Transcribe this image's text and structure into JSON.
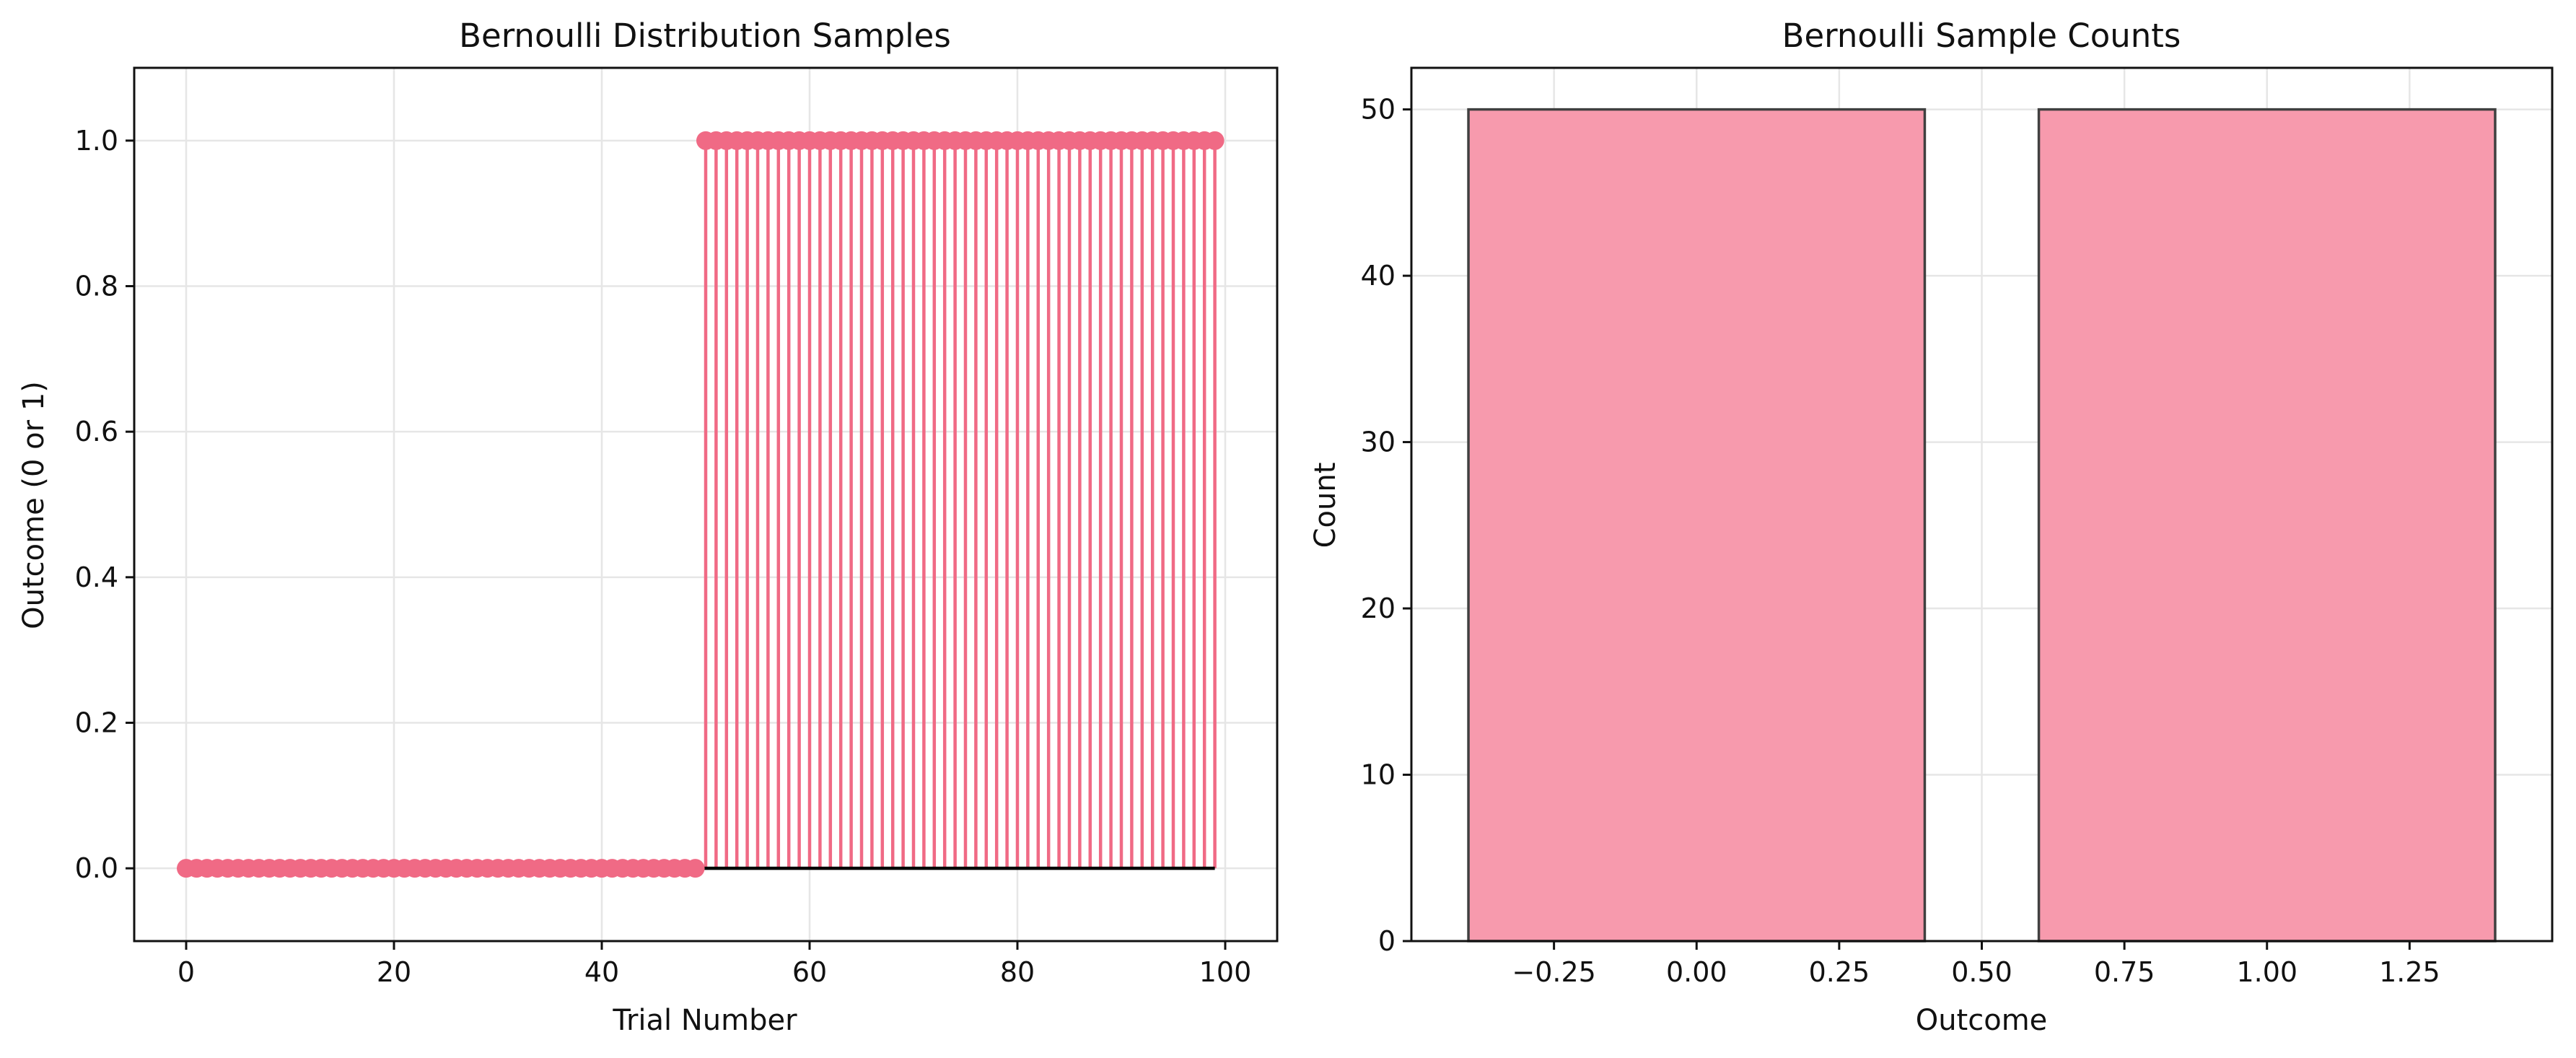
{
  "chart_data": [
    {
      "type": "stem",
      "title": "Bernoulli Distribution Samples",
      "xlabel": "Trial Number",
      "ylabel": "Outcome (0 or 1)",
      "xlim": [
        -5,
        105
      ],
      "ylim": [
        -0.1,
        1.1
      ],
      "xticks": [
        0,
        20,
        40,
        60,
        80,
        100
      ],
      "yticks": [
        0.0,
        0.2,
        0.4,
        0.6,
        0.8,
        1.0
      ],
      "xtick_labels": [
        "0",
        "20",
        "40",
        "60",
        "80",
        "100"
      ],
      "ytick_labels": [
        "0.0",
        "0.2",
        "0.4",
        "0.6",
        "0.8",
        "1.0"
      ],
      "grid": true,
      "baseline": 0,
      "series": [
        {
          "x": [
            0,
            1,
            2,
            3,
            4,
            5,
            6,
            7,
            8,
            9,
            10,
            11,
            12,
            13,
            14,
            15,
            16,
            17,
            18,
            19,
            20,
            21,
            22,
            23,
            24,
            25,
            26,
            27,
            28,
            29,
            30,
            31,
            32,
            33,
            34,
            35,
            36,
            37,
            38,
            39,
            40,
            41,
            42,
            43,
            44,
            45,
            46,
            47,
            48,
            49,
            50,
            51,
            52,
            53,
            54,
            55,
            56,
            57,
            58,
            59,
            60,
            61,
            62,
            63,
            64,
            65,
            66,
            67,
            68,
            69,
            70,
            71,
            72,
            73,
            74,
            75,
            76,
            77,
            78,
            79,
            80,
            81,
            82,
            83,
            84,
            85,
            86,
            87,
            88,
            89,
            90,
            91,
            92,
            93,
            94,
            95,
            96,
            97,
            98,
            99
          ],
          "y": [
            0,
            0,
            0,
            0,
            0,
            0,
            0,
            0,
            0,
            0,
            0,
            0,
            0,
            0,
            0,
            0,
            0,
            0,
            0,
            0,
            0,
            0,
            0,
            0,
            0,
            0,
            0,
            0,
            0,
            0,
            0,
            0,
            0,
            0,
            0,
            0,
            0,
            0,
            0,
            0,
            0,
            0,
            0,
            0,
            0,
            0,
            0,
            0,
            0,
            0,
            1,
            1,
            1,
            1,
            1,
            1,
            1,
            1,
            1,
            1,
            1,
            1,
            1,
            1,
            1,
            1,
            1,
            1,
            1,
            1,
            1,
            1,
            1,
            1,
            1,
            1,
            1,
            1,
            1,
            1,
            1,
            1,
            1,
            1,
            1,
            1,
            1,
            1,
            1,
            1,
            1,
            1,
            1,
            1,
            1,
            1,
            1,
            1,
            1,
            1
          ]
        }
      ],
      "colors": {
        "stem": "#f06a85",
        "marker": "#f06a85",
        "baseline": "#000000"
      }
    },
    {
      "type": "bar",
      "title": "Bernoulli Sample Counts",
      "xlabel": "Outcome",
      "ylabel": "Count",
      "categories": [
        0,
        1
      ],
      "values": [
        50,
        50
      ],
      "xlim": [
        -0.5,
        1.5
      ],
      "ylim": [
        0,
        52.5
      ],
      "xticks": [
        -0.25,
        0.0,
        0.25,
        0.5,
        0.75,
        1.0,
        1.25
      ],
      "yticks": [
        0,
        10,
        20,
        30,
        40,
        50
      ],
      "xtick_labels": [
        "−0.25",
        "0.00",
        "0.25",
        "0.50",
        "0.75",
        "1.00",
        "1.25"
      ],
      "ytick_labels": [
        "0",
        "10",
        "20",
        "30",
        "40",
        "50"
      ],
      "grid": true,
      "colors": {
        "bar_fill": "#f79aad",
        "bar_edge": "#404040"
      }
    }
  ]
}
